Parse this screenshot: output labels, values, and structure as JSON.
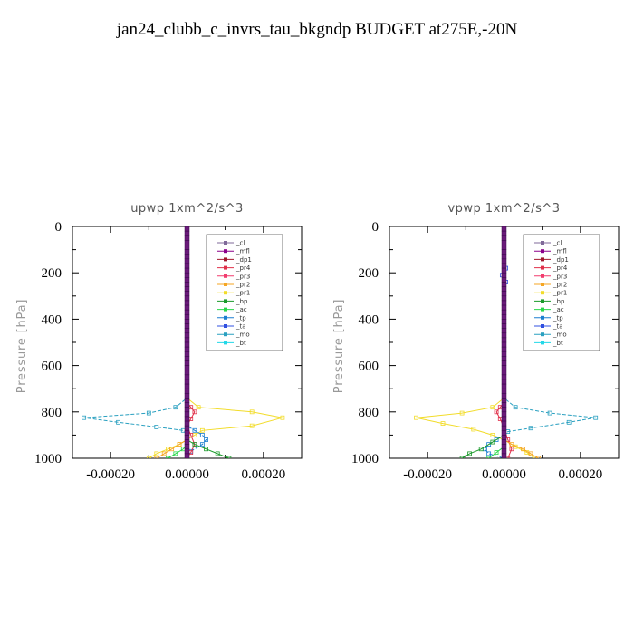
{
  "figure": {
    "title": "jan24_clubb_c_invrs_tau_bkgndp  BUDGET at275E,-20N"
  },
  "legend_colors": {
    "_cl": "#7f6a99",
    "_mfl": "#8b008b",
    "_dp1": "#a0162c",
    "_pr4": "#e0304a",
    "_pr3": "#f23c6e",
    "_pr2": "#f5a623",
    "_pr1": "#f2dc2a",
    "_bp": "#1a9a2a",
    "_ac": "#2ad84a",
    "_tp": "#1c7fd0",
    "_ta": "#3050e0",
    "_mo": "#2aa0c0",
    "_bt": "#22d8e8"
  },
  "chart_data": [
    {
      "type": "line",
      "title": "upwp   1xm^2/s^3",
      "ylabel": "Pressure [hPa]",
      "xlim": [
        -0.0003,
        0.0003
      ],
      "ylim": [
        1000,
        0
      ],
      "xticks": [
        "-0.00020",
        "0.00000",
        "0.00020"
      ],
      "xtick_values": [
        -0.0002,
        0,
        0.0002
      ],
      "yticks": [
        "0",
        "200",
        "400",
        "600",
        "800",
        "1000"
      ],
      "ytick_values": [
        0,
        200,
        400,
        600,
        800,
        1000
      ],
      "legend_position": "top-right",
      "legend": [
        "_cl",
        "_mfl",
        "_dp1",
        "_pr4",
        "_pr3",
        "_pr2",
        "_pr1",
        "_bp",
        "_ac",
        "_tp",
        "_ta",
        "_mo",
        "_bt"
      ],
      "series": [
        {
          "name": "_pr1",
          "x": [
            0,
            0,
            3e-05,
            0.00017,
            0.00025,
            0.00017,
            4e-05,
            2e-05,
            0,
            -2e-05,
            -5e-05,
            -8e-05,
            -0.0001
          ],
          "y": [
            0,
            740,
            780,
            800,
            825,
            860,
            880,
            900,
            920,
            940,
            960,
            980,
            1000
          ]
        },
        {
          "name": "_mo",
          "x": [
            0,
            0,
            -3e-05,
            -0.0001,
            -0.00027,
            -0.00018,
            -8e-05,
            -1e-05,
            0,
            0
          ],
          "y": [
            0,
            740,
            780,
            805,
            825,
            845,
            865,
            880,
            900,
            1000
          ]
        },
        {
          "name": "_tp",
          "x": [
            0,
            0,
            2e-05,
            4e-05,
            5e-05,
            4e-05,
            1e-05,
            0
          ],
          "y": [
            0,
            860,
            880,
            900,
            920,
            940,
            970,
            1000
          ]
        },
        {
          "name": "_pr4",
          "x": [
            0,
            0,
            1e-05,
            2e-05,
            1e-05,
            0,
            1e-05,
            2e-05,
            1e-05,
            0
          ],
          "y": [
            0,
            760,
            780,
            800,
            830,
            860,
            900,
            940,
            975,
            1000
          ]
        },
        {
          "name": "_bp",
          "x": [
            0,
            0,
            2e-05,
            5e-05,
            8e-05,
            0.00011
          ],
          "y": [
            0,
            920,
            940,
            960,
            980,
            1000
          ]
        },
        {
          "name": "_ac",
          "x": [
            0,
            0,
            -1e-05,
            -3e-05,
            -5e-05
          ],
          "y": [
            0,
            940,
            960,
            980,
            1000
          ]
        },
        {
          "name": "_pr2",
          "x": [
            0,
            0,
            -2e-05,
            -4e-05,
            -6e-05,
            -8e-05
          ],
          "y": [
            0,
            920,
            940,
            960,
            980,
            1000
          ]
        },
        {
          "name": "_mfl",
          "x": [
            0,
            0
          ],
          "y": [
            0,
            1000
          ]
        }
      ]
    },
    {
      "type": "line",
      "title": "vpwp   1xm^2/s^3",
      "ylabel": "Pressure [hPa]",
      "xlim": [
        -0.0003,
        0.0003
      ],
      "ylim": [
        1000,
        0
      ],
      "xticks": [
        "-0.00020",
        "0.00000",
        "0.00020"
      ],
      "xtick_values": [
        -0.0002,
        0,
        0.0002
      ],
      "yticks": [
        "0",
        "200",
        "400",
        "600",
        "800",
        "1000"
      ],
      "ytick_values": [
        0,
        200,
        400,
        600,
        800,
        1000
      ],
      "legend_position": "top-right",
      "legend": [
        "_cl",
        "_mfl",
        "_dp1",
        "_pr4",
        "_pr3",
        "_pr2",
        "_pr1",
        "_bp",
        "_ac",
        "_tp",
        "_ta",
        "_mo",
        "_bt"
      ],
      "series": [
        {
          "name": "_pr1",
          "x": [
            0,
            0,
            -3e-05,
            -0.00011,
            -0.00023,
            -0.00016,
            -8e-05,
            -3e-05,
            0,
            3e-05,
            6e-05,
            8e-05
          ],
          "y": [
            0,
            740,
            780,
            805,
            825,
            850,
            875,
            900,
            920,
            950,
            975,
            1000
          ]
        },
        {
          "name": "_mo",
          "x": [
            0,
            0,
            3e-05,
            0.00012,
            0.00024,
            0.00017,
            7e-05,
            1e-05,
            0,
            0
          ],
          "y": [
            0,
            740,
            780,
            805,
            825,
            845,
            870,
            885,
            905,
            1000
          ]
        },
        {
          "name": "_tp",
          "x": [
            0,
            0,
            -2e-05,
            -4e-05,
            -5e-05,
            -4e-05,
            0,
            0
          ],
          "y": [
            0,
            900,
            920,
            940,
            960,
            980,
            1000,
            1000
          ]
        },
        {
          "name": "_pr4",
          "x": [
            0,
            0,
            -1e-05,
            -2e-05,
            -1e-05,
            0,
            1e-05,
            2e-05,
            1e-05
          ],
          "y": [
            0,
            760,
            780,
            800,
            830,
            870,
            920,
            960,
            1000
          ]
        },
        {
          "name": "_bp",
          "x": [
            0,
            0,
            -3e-05,
            -6e-05,
            -9e-05,
            -0.00011
          ],
          "y": [
            0,
            900,
            930,
            960,
            980,
            1000
          ]
        },
        {
          "name": "_ac",
          "x": [
            0,
            0,
            -2e-05,
            -4e-05
          ],
          "y": [
            0,
            950,
            975,
            1000
          ]
        },
        {
          "name": "_pr2",
          "x": [
            0,
            0,
            2e-05,
            5e-05,
            7e-05,
            9e-05
          ],
          "y": [
            0,
            920,
            940,
            960,
            980,
            1000
          ]
        },
        {
          "name": "_ta",
          "x": [
            0,
            5e-06,
            -5e-06,
            5e-06,
            0,
            0
          ],
          "y": [
            0,
            180,
            210,
            240,
            270,
            1000
          ]
        },
        {
          "name": "_mfl",
          "x": [
            0,
            0
          ],
          "y": [
            0,
            1000
          ]
        }
      ]
    }
  ]
}
